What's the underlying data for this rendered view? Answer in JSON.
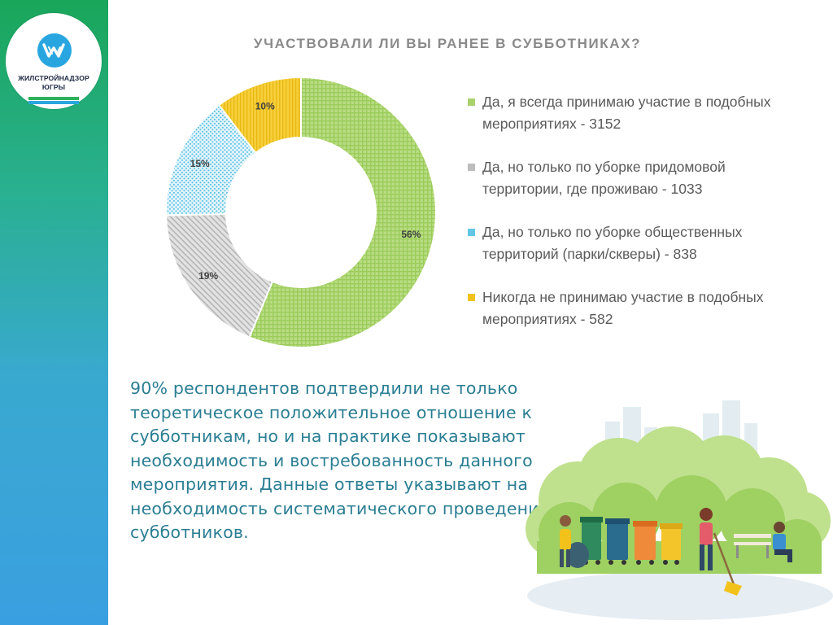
{
  "logo": {
    "line1": "ЖИЛСТРОЙНАДЗОР",
    "line2": "ЮГРЫ"
  },
  "colors": {
    "accent_text": "#2b7e93",
    "slice_yes_always": "#a8d26a",
    "slice_yes_yard": "#bdbdbd",
    "slice_yes_public": "#62c6e6",
    "slice_never": "#f2c21b"
  },
  "chart_data": {
    "type": "pie",
    "title": "УЧАСТВОВАЛИ ЛИ ВЫ РАНЕЕ В СУББОТНИКАХ?",
    "donut": true,
    "legend_position": "right",
    "slices": [
      {
        "legend": "Да, я всегда принимаю участие в подобных мероприятиях - 3152",
        "value": 3152,
        "label": "56%",
        "color_key": "slice_yes_always"
      },
      {
        "legend": "Да, но только по уборке придомовой территории, где проживаю - 1033",
        "value": 1033,
        "label": "19%",
        "color_key": "slice_yes_yard"
      },
      {
        "legend": "Да, но только по уборке общественных территорий (парки/скверы) - 838",
        "value": 838,
        "label": "15%",
        "color_key": "slice_yes_public"
      },
      {
        "legend": "Никогда не принимаю участие в подобных мероприятиях - 582",
        "value": 582,
        "label": "10%",
        "color_key": "slice_never"
      }
    ]
  },
  "summary": "90% респондентов подтвердили не только теоретическое положительное отношение к субботникам, но и на практике показывают необходимость и востребованность данного мероприятия. Данные ответы указывают на необходимость систематического проведения субботников.",
  "illustration": {
    "icon": "cleanup-day-illustration"
  }
}
